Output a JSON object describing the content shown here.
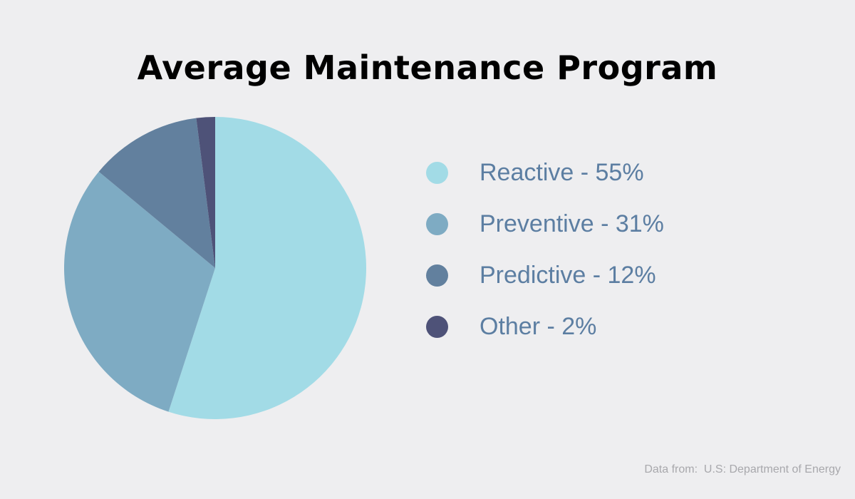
{
  "chart_data": {
    "type": "pie",
    "title": "Average Maintenance Program",
    "series": [
      {
        "name": "Reactive",
        "value": 55,
        "label": "Reactive - 55%",
        "color": "#a2dbe6"
      },
      {
        "name": "Preventive",
        "value": 31,
        "label": "Preventive - 31%",
        "color": "#7eabc3"
      },
      {
        "name": "Predictive",
        "value": 12,
        "label": "Predictive - 12%",
        "color": "#62809e"
      },
      {
        "name": "Other",
        "value": 2,
        "label": "Other - 2%",
        "color": "#4e5278"
      }
    ],
    "legend_position": "right",
    "legend_swatch_shape": "circle",
    "start_angle": "top",
    "direction": "clockwise"
  },
  "source_note": "Data from:  U.S: Department of Energy",
  "colors": {
    "background": "#eeeef0",
    "title": "#000000",
    "legend_text": "#5c7ea2",
    "source_text": "#a8a8ac"
  }
}
